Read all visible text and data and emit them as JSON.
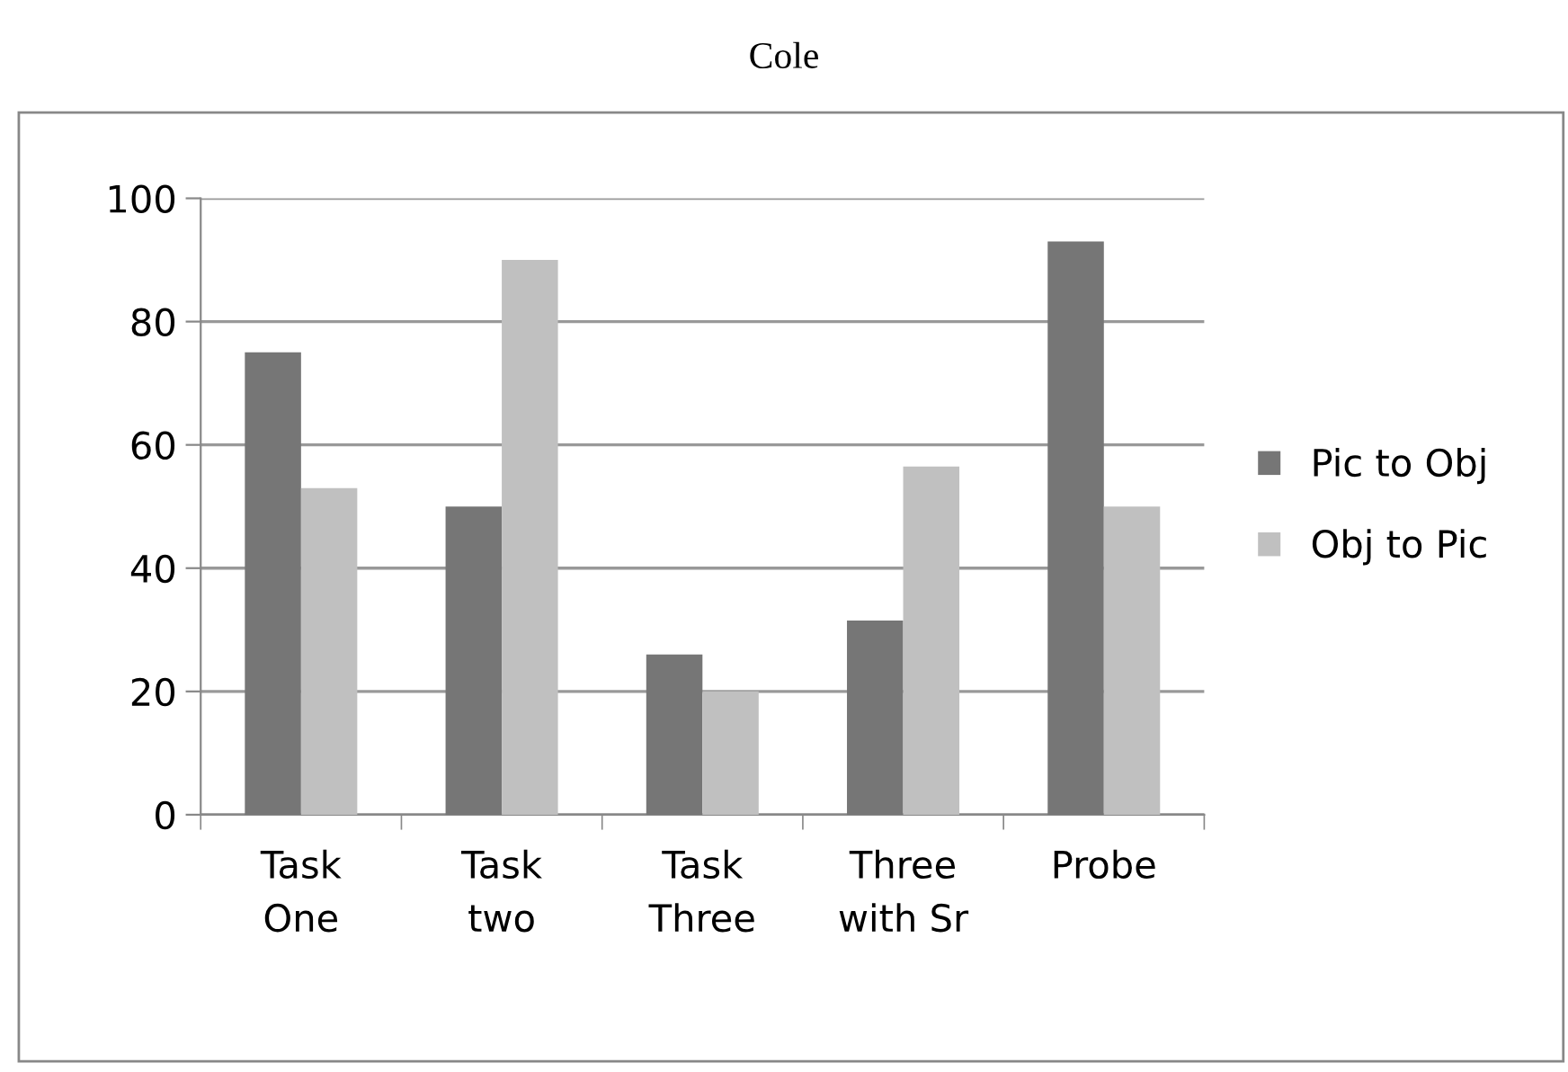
{
  "chart_data": {
    "type": "bar",
    "title": "Cole",
    "categories": [
      "Task\nOne",
      "Task\ntwo",
      "Task\nThree",
      "Three\nwith Sr",
      "Probe"
    ],
    "series": [
      {
        "name": "Pic to Obj",
        "color": "#767676",
        "values": [
          75,
          50,
          26,
          31.5,
          93
        ]
      },
      {
        "name": "Obj to Pic",
        "color": "#c0c0c0",
        "values": [
          53,
          90,
          20,
          56.5,
          50
        ]
      }
    ],
    "ylim": [
      0,
      100
    ],
    "yticks": [
      0,
      20,
      40,
      60,
      80,
      100
    ],
    "grid": "y",
    "legend": "right"
  }
}
